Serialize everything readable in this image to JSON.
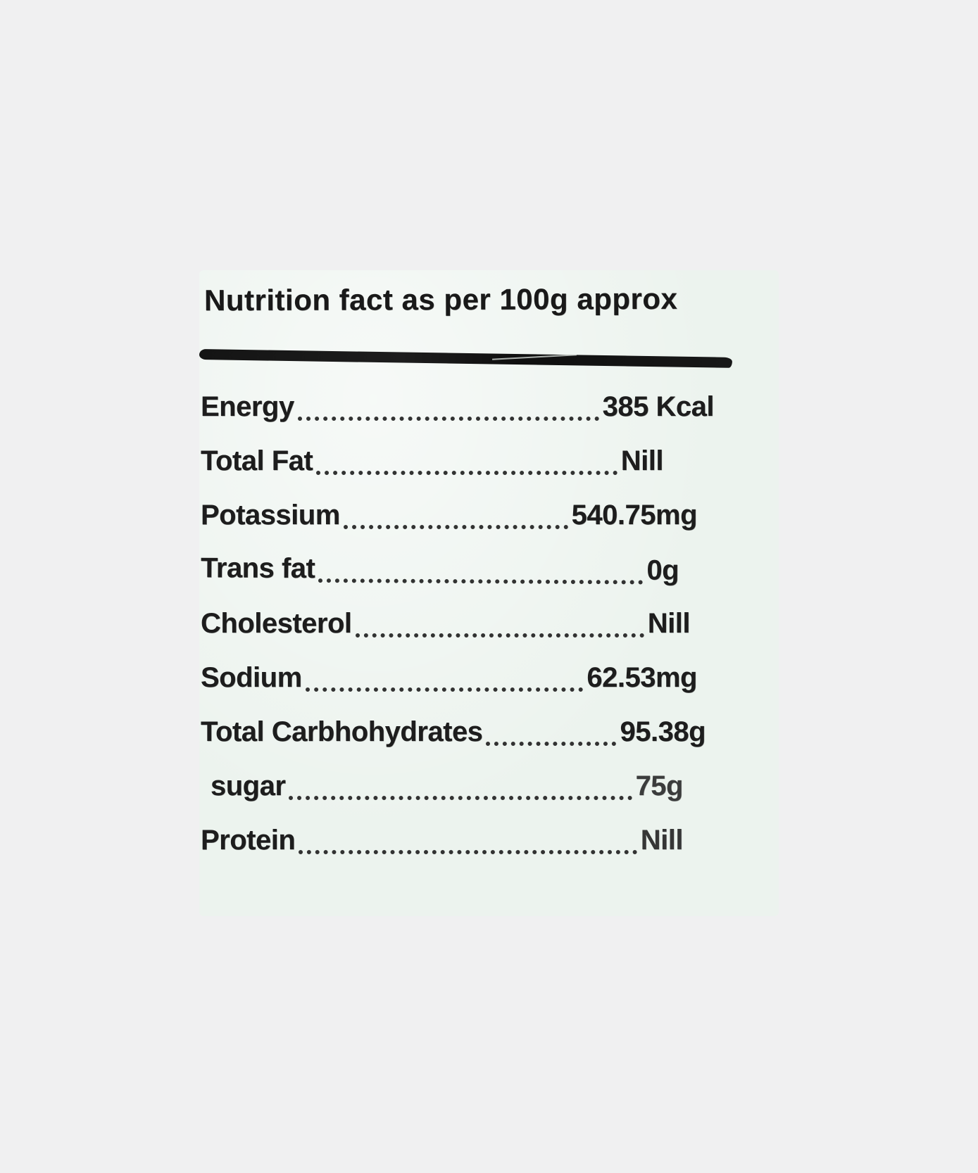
{
  "page": {
    "background_color": "#f0f0f1"
  },
  "label_card": {
    "background_color": "#ecf3ee",
    "ink_color": "#1c1c1c",
    "title": "Nutrition fact as per 100g approx",
    "serving_basis": "100g",
    "rows": [
      {
        "label": "Energy",
        "value": "385 Kcal"
      },
      {
        "label": "Total Fat",
        "value": "Nill"
      },
      {
        "label": "Potassium",
        "value": "540.75mg"
      },
      {
        "label": "Trans fat",
        "value": "0g"
      },
      {
        "label": "Cholesterol",
        "value": "Nill"
      },
      {
        "label": "Sodium",
        "value": "62.53mg"
      },
      {
        "label": "Total Carbhohydrates",
        "value": "95.38g"
      },
      {
        "label": "sugar",
        "value": "75g"
      },
      {
        "label": "Protein",
        "value": "Nill"
      }
    ]
  }
}
